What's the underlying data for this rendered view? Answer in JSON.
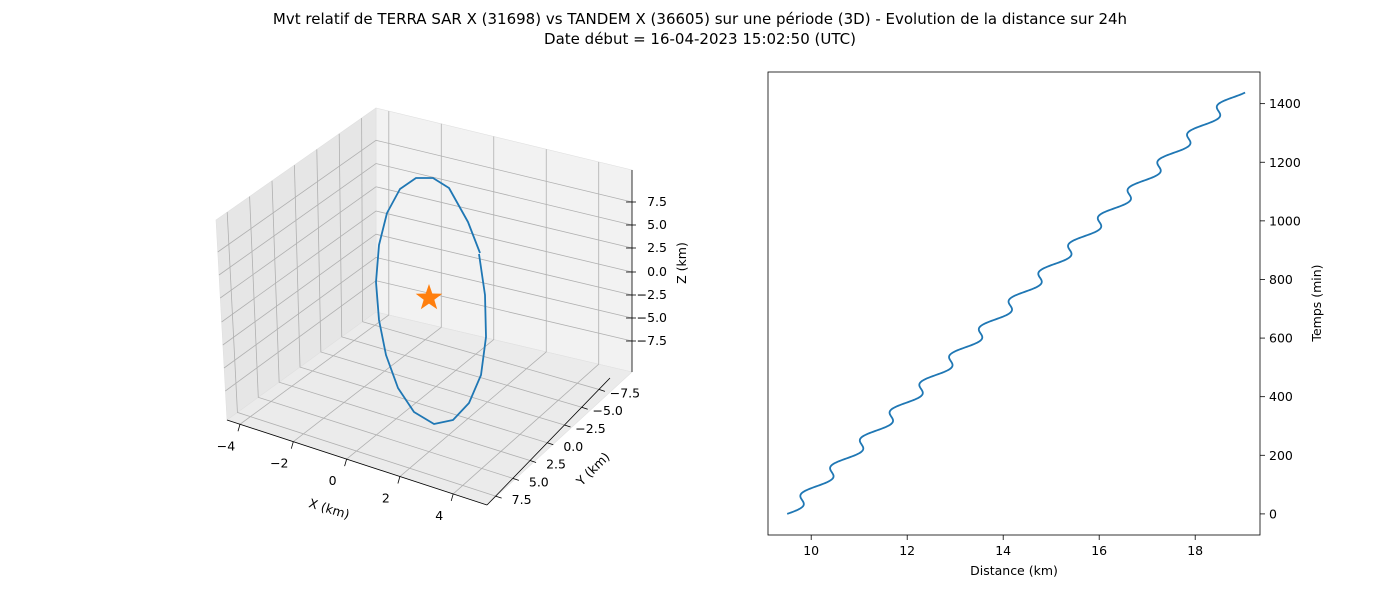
{
  "chart_title": "Mvt relatif de TERRA SAR X (31698) vs TANDEM X (36605) sur une période (3D) - Evolution de la distance sur 24h",
  "chart_subtitle": "Date début = 16-04-2023 15:02:50 (UTC)",
  "chart_data": [
    {
      "type": "line3d",
      "xlabel": "X (km)",
      "ylabel": "Y (km)",
      "zlabel": "Z (km)",
      "x_ticks": [
        "−4",
        "−2",
        "0",
        "2",
        "4"
      ],
      "y_ticks": [
        "−7.5",
        "−5.0",
        "−2.5",
        "0.0",
        "2.5",
        "5.0",
        "7.5"
      ],
      "z_ticks": [
        "7.5",
        "5.0",
        "2.5",
        "0.0",
        "−2.5",
        "−5.0",
        "−7.5"
      ],
      "grid": true,
      "series_color": "#1f77b4",
      "marker": {
        "shape": "star",
        "x": 0,
        "y": 0,
        "z": 0,
        "color": "#ff7f0e"
      }
    },
    {
      "type": "line",
      "xlabel": "Distance (km)",
      "ylabel": "Temps (min)",
      "xlim": [
        9.1,
        19.35
      ],
      "ylim": [
        -72,
        1508
      ],
      "x_ticks": [
        10,
        12,
        14,
        16,
        18
      ],
      "y_ticks": [
        0,
        200,
        400,
        600,
        800,
        1000,
        1200,
        1400
      ],
      "y_axis_side": "right",
      "series_color": "#1f77b4",
      "period_min": 94.8,
      "periods": 15.17,
      "start": {
        "distance_km": 9.5,
        "time_min": 0
      },
      "end": {
        "distance_km": 18.9,
        "time_min": 1438
      }
    }
  ]
}
